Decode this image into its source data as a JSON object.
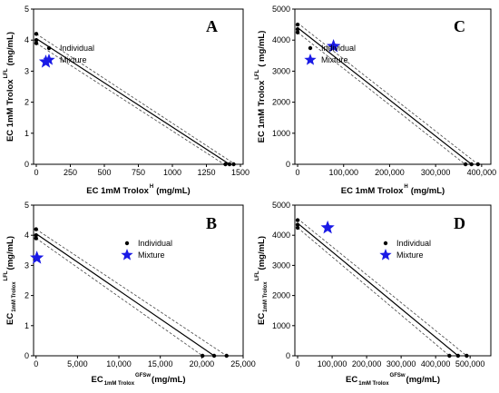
{
  "chart_data": [
    {
      "panel": "A",
      "type": "scatter",
      "xlabel": "EC 1mM Trolox",
      "xlabel_sup": "H",
      "xlabel_unit": "(mg/mL)",
      "ylabel": "EC 1mM Trolox",
      "ylabel_sup": "LFL",
      "ylabel_unit": "(mg/mL)",
      "xlim": [
        -20,
        1520
      ],
      "ylim": [
        0,
        5
      ],
      "xticks": [
        0,
        250,
        500,
        750,
        1000,
        1250,
        1500
      ],
      "xtick_labels": [
        "0",
        "250",
        "500",
        "750",
        "1000",
        "1250",
        "1500"
      ],
      "yticks": [
        0,
        1,
        2,
        3,
        4,
        5
      ],
      "ytick_labels": [
        "0",
        "1",
        "2",
        "3",
        "4",
        "5"
      ],
      "legend_pos": "top-left",
      "legend": [
        "Individual",
        "Mixture"
      ],
      "series": [
        {
          "name": "Individual",
          "points": [
            [
              0,
              4.2
            ],
            [
              0,
              4.0
            ],
            [
              0,
              3.9
            ],
            [
              1390,
              0
            ],
            [
              1420,
              0
            ],
            [
              1450,
              0
            ]
          ]
        },
        {
          "name": "Mixture",
          "points": [
            [
              70,
              3.3
            ]
          ]
        }
      ],
      "fit": {
        "x": [
          0,
          1420
        ],
        "y": [
          4.05,
          0
        ]
      },
      "ci_upper": {
        "x": [
          0,
          1460
        ],
        "y": [
          4.2,
          0
        ]
      },
      "ci_lower": {
        "x": [
          0,
          1380
        ],
        "y": [
          3.9,
          0
        ]
      }
    },
    {
      "panel": "C",
      "type": "scatter",
      "xlabel": "EC 1mM Trolox",
      "xlabel_sup": "H",
      "xlabel_unit": "(mg/mL)",
      "ylabel": "EC 1mM Trolox",
      "ylabel_sup": "LFL",
      "ylabel_unit": "( mg/mL)",
      "xlim": [
        -6000,
        420000
      ],
      "ylim": [
        0,
        5000
      ],
      "xticks": [
        0,
        100000,
        200000,
        300000,
        400000
      ],
      "xtick_labels": [
        "0",
        "100,000",
        "200,000",
        "300,000",
        "400,000"
      ],
      "yticks": [
        0,
        1000,
        2000,
        3000,
        4000,
        5000
      ],
      "ytick_labels": [
        "0",
        "1000",
        "2000",
        "3000",
        "4000",
        "5000"
      ],
      "legend_pos": "top-left",
      "legend": [
        "Individual",
        "Mixture"
      ],
      "series": [
        {
          "name": "Individual",
          "points": [
            [
              0,
              4500
            ],
            [
              0,
              4350
            ],
            [
              0,
              4250
            ],
            [
              365000,
              0
            ],
            [
              378000,
              0
            ],
            [
              392000,
              0
            ]
          ]
        },
        {
          "name": "Mixture",
          "points": [
            [
              78000,
              3800
            ]
          ]
        }
      ],
      "fit": {
        "x": [
          0,
          378000
        ],
        "y": [
          4400,
          0
        ]
      },
      "ci_upper": {
        "x": [
          0,
          392000
        ],
        "y": [
          4550,
          0
        ]
      },
      "ci_lower": {
        "x": [
          0,
          364000
        ],
        "y": [
          4250,
          0
        ]
      }
    },
    {
      "panel": "B",
      "type": "scatter",
      "xlabel": "EC",
      "xlabel_sub": "1mM Trolox",
      "xlabel_sup": "GFSw",
      "xlabel_unit": "(mg/mL)",
      "ylabel": "EC",
      "ylabel_sub": "1mM Trolox",
      "ylabel_sup": "LFL",
      "ylabel_unit": "(mg/mL)",
      "xlim": [
        -300,
        25000
      ],
      "ylim": [
        0,
        5
      ],
      "xticks": [
        0,
        5000,
        10000,
        15000,
        20000,
        25000
      ],
      "xtick_labels": [
        "0",
        "5,000",
        "10,000",
        "15,000",
        "20,000",
        "25,000"
      ],
      "yticks": [
        0,
        1,
        2,
        3,
        4,
        5
      ],
      "ytick_labels": [
        "0",
        "1",
        "2",
        "3",
        "4",
        "5"
      ],
      "legend_pos": "top-center",
      "legend": [
        "Individual",
        "Mixture"
      ],
      "series": [
        {
          "name": "Individual",
          "points": [
            [
              0,
              4.2
            ],
            [
              0,
              4.0
            ],
            [
              0,
              3.9
            ],
            [
              20100,
              0
            ],
            [
              21500,
              0
            ],
            [
              23000,
              0
            ]
          ]
        },
        {
          "name": "Mixture",
          "points": [
            [
              100,
              3.25
            ]
          ]
        }
      ],
      "fit": {
        "x": [
          0,
          21500
        ],
        "y": [
          4.05,
          0
        ]
      },
      "ci_upper": {
        "x": [
          0,
          23000
        ],
        "y": [
          4.2,
          0
        ]
      },
      "ci_lower": {
        "x": [
          0,
          20100
        ],
        "y": [
          3.9,
          0
        ]
      }
    },
    {
      "panel": "D",
      "type": "scatter",
      "xlabel": "EC",
      "xlabel_sub": "1mM Trolox",
      "xlabel_sup": "GFSw",
      "xlabel_unit": "(mg/mL)",
      "ylabel": "EC",
      "ylabel_sub": "1mM Trolox",
      "ylabel_sup": "LFL",
      "ylabel_unit": "(mg/mL)",
      "xlim": [
        -8000,
        560000
      ],
      "ylim": [
        0,
        5000
      ],
      "xticks": [
        0,
        100000,
        200000,
        300000,
        400000,
        500000
      ],
      "xtick_labels": [
        "0",
        "100,000",
        "200,000",
        "300,000",
        "400,000",
        "500,000"
      ],
      "yticks": [
        0,
        1000,
        2000,
        3000,
        4000,
        5000
      ],
      "ytick_labels": [
        "0",
        "1000",
        "2000",
        "3000",
        "4000",
        "5000"
      ],
      "legend_pos": "top-center",
      "legend": [
        "Individual",
        "Mixture"
      ],
      "series": [
        {
          "name": "Individual",
          "points": [
            [
              0,
              4500
            ],
            [
              0,
              4350
            ],
            [
              0,
              4250
            ],
            [
              440000,
              0
            ],
            [
              465000,
              0
            ],
            [
              490000,
              0
            ]
          ]
        },
        {
          "name": "Mixture",
          "points": [
            [
              87000,
              4250
            ]
          ]
        }
      ],
      "fit": {
        "x": [
          0,
          465000
        ],
        "y": [
          4400,
          0
        ]
      },
      "ci_upper": {
        "x": [
          0,
          490000
        ],
        "y": [
          4550,
          0
        ]
      },
      "ci_lower": {
        "x": [
          0,
          440000
        ],
        "y": [
          4250,
          0
        ]
      }
    }
  ],
  "colors": {
    "individual": "#000000",
    "mixture": "#1a1ae6",
    "fit": "#000000",
    "ci": "#444444"
  }
}
